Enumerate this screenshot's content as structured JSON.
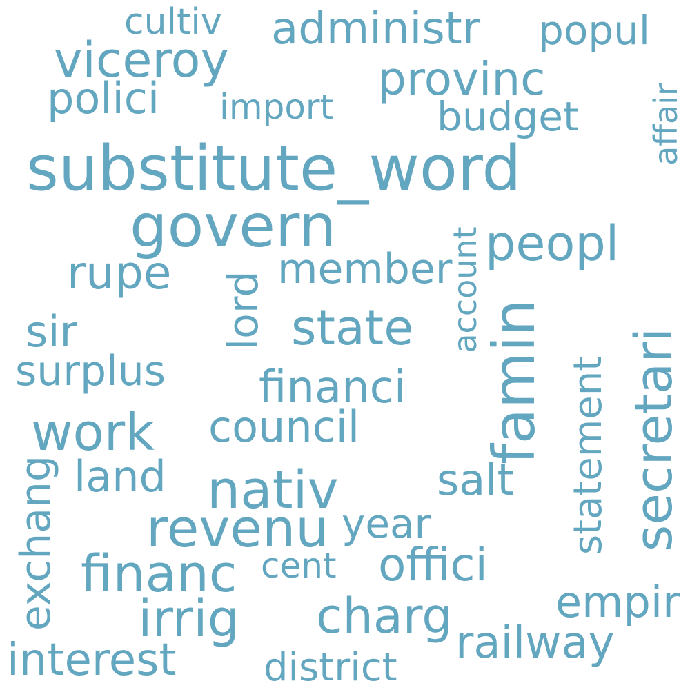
{
  "word_color": "#62a6bf",
  "background_color": "#ffffff",
  "words": {
    "substitute_word": "substitute_word",
    "govern": "govern",
    "famin": "famin",
    "secretari": "secretari",
    "nativ": "nativ",
    "revenu": "revenu",
    "state": "state",
    "work": "work",
    "financ": "financ",
    "viceroy": "viceroy",
    "peopl": "peopl",
    "administr": "administr",
    "provinc": "provinc",
    "rupe": "rupe",
    "irrig": "irrig",
    "charg": "charg",
    "offici": "offici",
    "statement": "statement",
    "railway": "railway",
    "interest": "interest",
    "exchang": "exchang",
    "council": "council",
    "financi": "financi",
    "member": "member",
    "lord": "lord",
    "popul": "popul",
    "polici": "polici",
    "budget": "budget",
    "year": "year",
    "land": "land",
    "salt": "salt",
    "surplus": "surplus",
    "sir": "sir",
    "empir": "empir",
    "district": "district",
    "account": "account",
    "affair": "affair",
    "cultiv": "cultiv",
    "import": "import",
    "cent": "cent"
  }
}
